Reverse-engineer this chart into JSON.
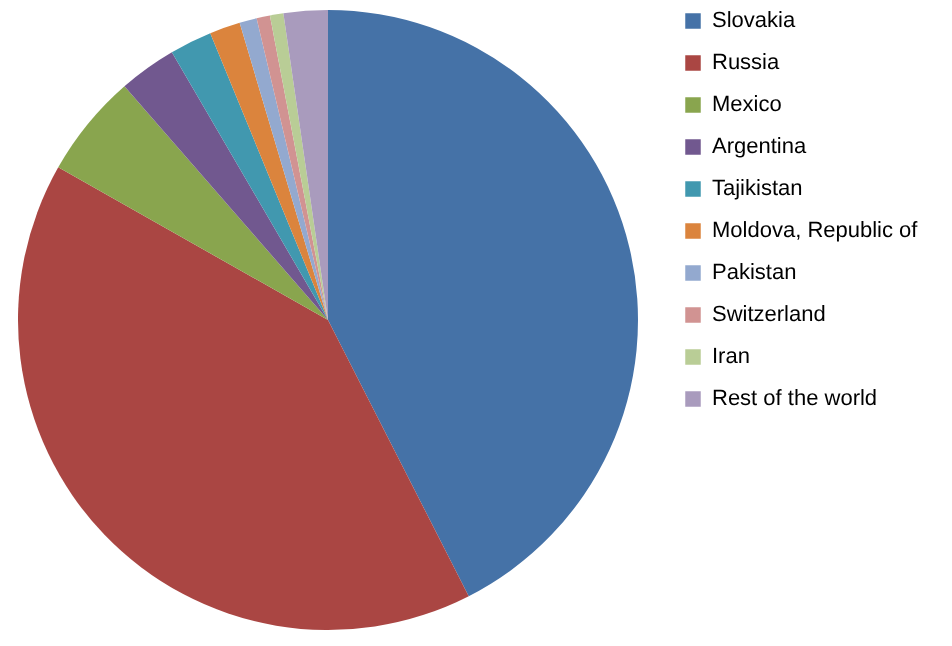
{
  "chart_data": {
    "type": "pie",
    "categories": [
      "Slovakia",
      "Russia",
      "Mexico",
      "Argentina",
      "Tajikistan",
      "Moldova, Republic of",
      "Pakistan",
      "Switzerland",
      "Iran",
      "Rest of the world"
    ],
    "values": [
      42.5,
      40.7,
      5.4,
      3.0,
      2.2,
      1.6,
      0.9,
      0.7,
      0.7,
      2.3
    ],
    "colors": [
      "#4572a7",
      "#aa4643",
      "#89a54e",
      "#71588f",
      "#4198af",
      "#db843d",
      "#93a9cf",
      "#d19392",
      "#b9cd96",
      "#a99bbd"
    ],
    "legend": "right"
  }
}
